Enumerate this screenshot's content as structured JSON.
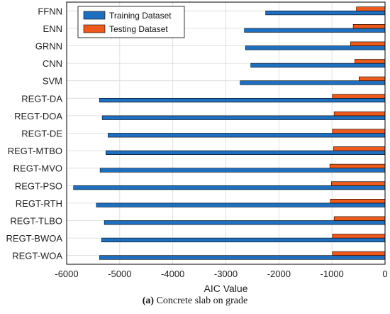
{
  "chart_data": {
    "type": "bar",
    "orientation": "horizontal",
    "categories": [
      "FFNN",
      "ENN",
      "GRNN",
      "CNN",
      "SVM",
      "REGT-DA",
      "REGT-DOA",
      "REGT-DE",
      "REGT-MTBO",
      "REGT-MVO",
      "REGT-PSO",
      "REGT-RTH",
      "REGT-TLBO",
      "REGT-BWOA",
      "REGT-WOA"
    ],
    "series": [
      {
        "name": "Training Dataset",
        "color": "#1f6fc0",
        "values": [
          -2250,
          -2650,
          -2630,
          -2530,
          -2730,
          -5380,
          -5330,
          -5220,
          -5260,
          -5370,
          -5870,
          -5440,
          -5290,
          -5340,
          -5380
        ]
      },
      {
        "name": "Testing Dataset",
        "color": "#ee5a1c",
        "values": [
          -540,
          -600,
          -650,
          -570,
          -490,
          -990,
          -960,
          -990,
          -970,
          -1040,
          -1010,
          -1030,
          -960,
          -990,
          -990
        ]
      }
    ],
    "xlabel": "AIC Value",
    "ylabel": "",
    "xlim": [
      -6000,
      0
    ],
    "xticks": [
      -6000,
      -5000,
      -4000,
      -3000,
      -2000,
      -1000,
      0
    ],
    "grid": true,
    "legend": "top-left"
  },
  "caption": {
    "tag": "(a)",
    "text": "Concrete slab on grade"
  }
}
